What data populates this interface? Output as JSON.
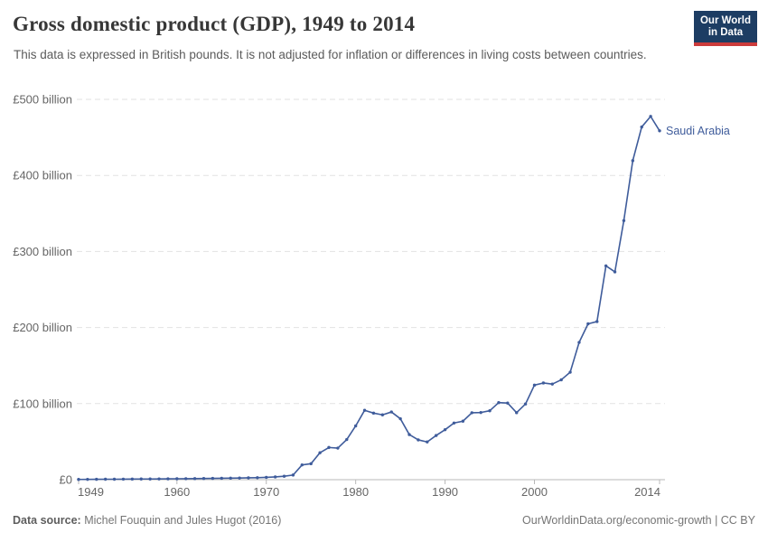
{
  "header": {
    "title": "Gross domestic product (GDP), 1949 to 2014",
    "subtitle": "This data is expressed in British pounds. It is not adjusted for inflation or differences in living costs between countries.",
    "logo": {
      "line1": "Our World",
      "line2": "in Data",
      "bg_color": "#1d3d63",
      "accent_color": "#cc3b3b",
      "text_color": "#ffffff"
    }
  },
  "chart_data": {
    "type": "line",
    "title": "Gross domestic product (GDP), 1949 to 2014",
    "xlabel": "",
    "ylabel": "",
    "xlim": [
      1949,
      2014
    ],
    "ylim": [
      0,
      500000000000
    ],
    "grid": "horizontal dashed",
    "legend_position": "end-of-line label",
    "unit": "British pounds",
    "yticks": [
      {
        "value": 0,
        "label": "£0"
      },
      {
        "value": 100,
        "label": "£100 billion"
      },
      {
        "value": 200,
        "label": "£200 billion"
      },
      {
        "value": 300,
        "label": "£300 billion"
      },
      {
        "value": 400,
        "label": "£400 billion"
      },
      {
        "value": 500,
        "label": "£500 billion"
      }
    ],
    "xticks": [
      1949,
      1960,
      1970,
      1980,
      1990,
      2000,
      2014
    ],
    "colors": {
      "line": "#3f5c9b",
      "grid": "#e2e2e2",
      "axis": "#b8b8b8"
    },
    "series": [
      {
        "name": "Saudi Arabia",
        "color": "#3f5c9b",
        "unit": "billion £",
        "years": [
          1949,
          1950,
          1951,
          1952,
          1953,
          1954,
          1955,
          1956,
          1957,
          1958,
          1959,
          1960,
          1961,
          1962,
          1963,
          1964,
          1965,
          1966,
          1967,
          1968,
          1969,
          1970,
          1971,
          1972,
          1973,
          1974,
          1975,
          1976,
          1977,
          1978,
          1979,
          1980,
          1981,
          1982,
          1983,
          1984,
          1985,
          1986,
          1987,
          1988,
          1989,
          1990,
          1991,
          1992,
          1993,
          1994,
          1995,
          1996,
          1997,
          1998,
          1999,
          2000,
          2001,
          2002,
          2003,
          2004,
          2005,
          2006,
          2007,
          2008,
          2009,
          2010,
          2011,
          2012,
          2013,
          2014
        ],
        "values": [
          0.3,
          0.4,
          0.5,
          0.6,
          0.6,
          0.7,
          0.8,
          0.9,
          0.9,
          1.0,
          1.1,
          1.2,
          1.3,
          1.4,
          1.5,
          1.7,
          1.8,
          2.0,
          2.2,
          2.4,
          2.6,
          3.0,
          3.6,
          4.5,
          6.1,
          19.4,
          21.0,
          35.4,
          42.3,
          41.5,
          52.8,
          70.7,
          91.2,
          87.5,
          85.2,
          89.0,
          80.1,
          59.3,
          52.3,
          49.6,
          58.1,
          65.7,
          74.5,
          76.9,
          88.0,
          88.3,
          90.6,
          101.3,
          100.7,
          88.1,
          99.5,
          124.3,
          127.1,
          125.7,
          131.3,
          141.3,
          180.5,
          204.9,
          207.9,
          281.1,
          273.2,
          340.6,
          419.4,
          463.7,
          477.6,
          458.7
        ]
      }
    ]
  },
  "footer": {
    "source_label": "Data source:",
    "source_value": " Michel Fouquin and Jules Hugot (2016)",
    "right_text": "OurWorldinData.org/economic-growth | CC BY"
  }
}
